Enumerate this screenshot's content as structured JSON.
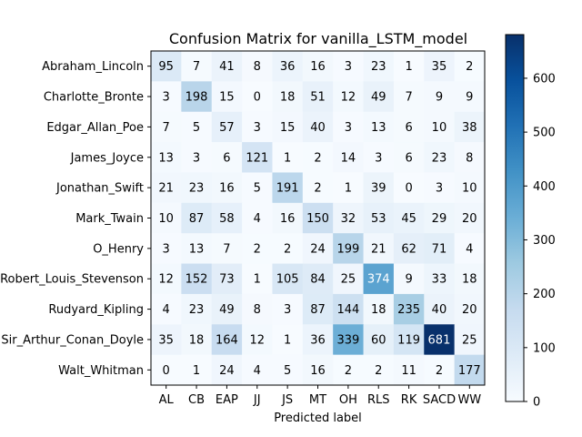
{
  "chart_data": {
    "type": "heatmap",
    "title": "Confusion Matrix for vanilla_LSTM_model",
    "xlabel": "Predicted label",
    "ylabel": "",
    "row_labels": [
      "Abraham_Lincoln",
      "Charlotte_Bronte",
      "Edgar_Allan_Poe",
      "James_Joyce",
      "Jonathan_Swift",
      "Mark_Twain",
      "O_Henry",
      "Robert_Louis_Stevenson",
      "Rudyard_Kipling",
      "Sir_Arthur_Conan_Doyle",
      "Walt_Whitman"
    ],
    "col_labels": [
      "AL",
      "CB",
      "EAP",
      "JJ",
      "JS",
      "MT",
      "OH",
      "RLS",
      "RK",
      "SACD",
      "WW"
    ],
    "values": [
      [
        95,
        7,
        41,
        8,
        36,
        16,
        3,
        23,
        1,
        35,
        2
      ],
      [
        3,
        198,
        15,
        0,
        18,
        51,
        12,
        49,
        7,
        9,
        9
      ],
      [
        7,
        5,
        57,
        3,
        15,
        40,
        3,
        13,
        6,
        10,
        38
      ],
      [
        13,
        3,
        6,
        121,
        1,
        2,
        14,
        3,
        6,
        23,
        8
      ],
      [
        21,
        23,
        16,
        5,
        191,
        2,
        1,
        39,
        0,
        3,
        10
      ],
      [
        10,
        87,
        58,
        4,
        16,
        150,
        32,
        53,
        45,
        29,
        20
      ],
      [
        3,
        13,
        7,
        2,
        2,
        24,
        199,
        21,
        62,
        71,
        4
      ],
      [
        12,
        152,
        73,
        1,
        105,
        84,
        25,
        374,
        9,
        33,
        18
      ],
      [
        4,
        23,
        49,
        8,
        3,
        87,
        144,
        18,
        235,
        40,
        20
      ],
      [
        35,
        18,
        164,
        12,
        1,
        36,
        339,
        60,
        119,
        681,
        25
      ],
      [
        0,
        1,
        24,
        4,
        5,
        16,
        2,
        2,
        11,
        2,
        177
      ]
    ],
    "colormap": "Blues",
    "vmin": 0,
    "vmax": 681,
    "colorbar_ticks": [
      0,
      100,
      200,
      300,
      400,
      500,
      600
    ],
    "grid": false
  }
}
